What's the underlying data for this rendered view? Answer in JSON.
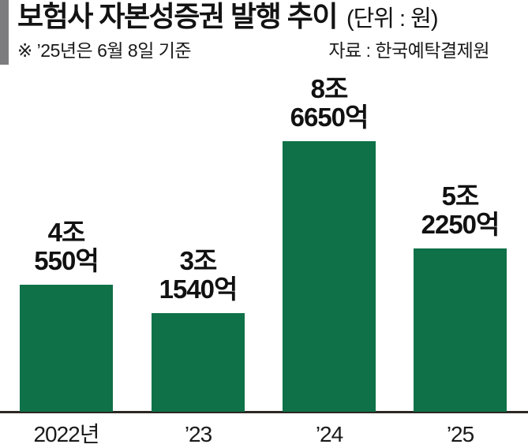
{
  "header": {
    "title": "보험사 자본성증권 발행 추이",
    "unit": "(단위 : 원)",
    "note": "※ ’25년은 6월 8일 기준",
    "source": "자료 : 한국예탁결제원"
  },
  "chart_data": {
    "type": "bar",
    "title": "보험사 자본성증권 발행 추이",
    "unit": "원",
    "categories": [
      "2022년",
      "’23",
      "’24",
      "’25"
    ],
    "values_in_jo_won": [
      4.055,
      3.154,
      8.665,
      5.225
    ],
    "values_in_eok_won": [
      40550,
      31540,
      86650,
      52250
    ],
    "value_labels": [
      "4조\n550억",
      "3조\n1540억",
      "8조\n6650억",
      "5조\n2250억"
    ],
    "ylim_jo_won": [
      0,
      9
    ],
    "grid": false,
    "legend": false,
    "bar_color": "#0e7148",
    "note": "※ ’25년은 6월 8일 기준",
    "source": "자료 : 한국예탁결제원"
  },
  "colors": {
    "bar_green": "#0e7148",
    "axis_line": "#2b2722",
    "accent_gray": "#7c7c7e",
    "text_black": "#131313"
  }
}
